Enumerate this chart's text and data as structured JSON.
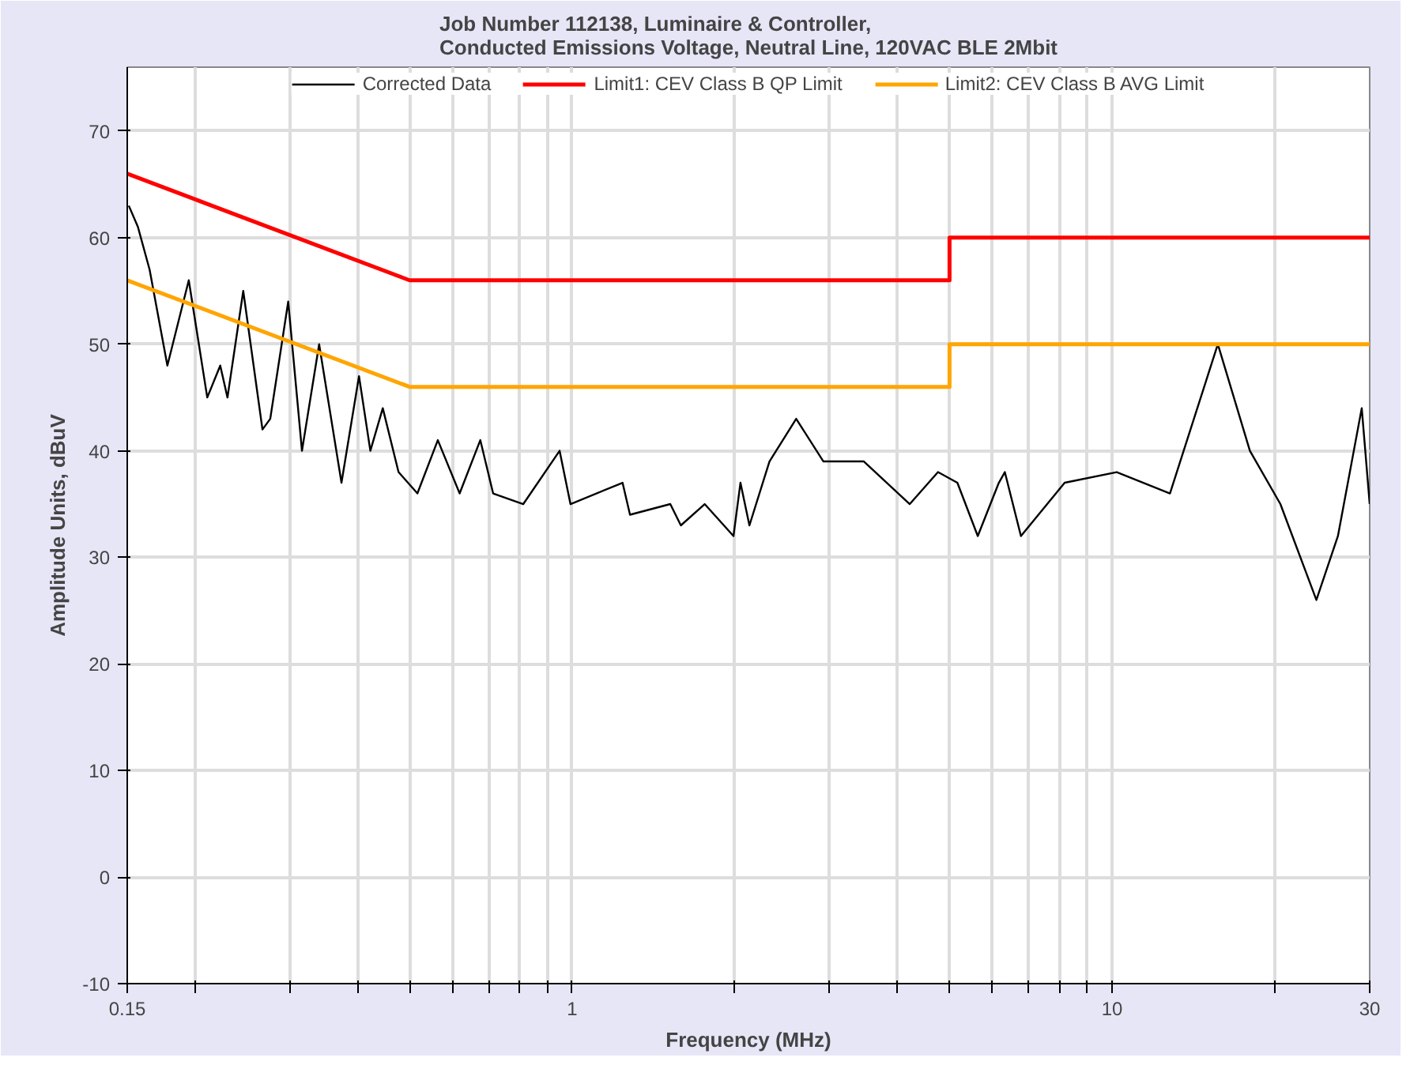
{
  "chart_data": {
    "type": "line",
    "title": "Job Number 112138, Luminaire & Controller,\nConducted Emissions Voltage, Neutral Line, 120VAC BLE 2Mbit",
    "xlabel": "Frequency (MHz)",
    "ylabel": "Amplitude Units, dBuV",
    "log": "x",
    "grid": true,
    "legend": "top",
    "xlim": [
      0.15,
      30
    ],
    "ylim": [
      -10,
      76
    ],
    "xticks": [
      0.15,
      {
        "value": 0.2,
        "label": null
      },
      {
        "value": 0.3,
        "label": null
      },
      {
        "value": 0.4,
        "label": null
      },
      {
        "value": 0.5,
        "label": null
      },
      {
        "value": 0.6,
        "label": null
      },
      {
        "value": 0.7,
        "label": null
      },
      {
        "value": 0.8,
        "label": null
      },
      {
        "value": 0.9,
        "label": null
      },
      1,
      {
        "value": 2,
        "label": null
      },
      {
        "value": 3,
        "label": null
      },
      {
        "value": 4,
        "label": null
      },
      {
        "value": 5,
        "label": null
      },
      {
        "value": 6,
        "label": null
      },
      {
        "value": 7,
        "label": null
      },
      {
        "value": 8,
        "label": null
      },
      {
        "value": 9,
        "label": null
      },
      10,
      {
        "value": 20,
        "label": null
      },
      30
    ],
    "yticks": [
      -10,
      0,
      10,
      20,
      30,
      40,
      50,
      60,
      70
    ],
    "series": [
      {
        "name": "Corrected Data",
        "color": "#000000",
        "x": [
          0.151,
          0.157,
          0.165,
          0.178,
          0.195,
          0.211,
          0.223,
          0.23,
          0.246,
          0.267,
          0.276,
          0.298,
          0.316,
          0.34,
          0.374,
          0.403,
          0.423,
          0.446,
          0.477,
          0.517,
          0.564,
          0.619,
          0.676,
          0.714,
          0.812,
          0.948,
          0.993,
          1.24,
          1.28,
          1.52,
          1.59,
          1.76,
          1.99,
          2.05,
          2.13,
          2.32,
          2.6,
          2.92,
          3.47,
          4.22,
          4.76,
          5.17,
          5.64,
          6.17,
          6.33,
          6.78,
          8.17,
          10.2,
          12.8,
          15.7,
          18.0,
          20.5,
          23.9,
          26.2,
          29.0,
          30
        ],
        "values": [
          63,
          61,
          57,
          48,
          56,
          45,
          48,
          45,
          55,
          42,
          43,
          54,
          40,
          50,
          37,
          47,
          40,
          44,
          38,
          36,
          41,
          36,
          41,
          36,
          35,
          40,
          35,
          37,
          34,
          35,
          33,
          35,
          32,
          37,
          33,
          39,
          43,
          39,
          39,
          35,
          38,
          37,
          32,
          37,
          38,
          32,
          37,
          38,
          36,
          50,
          40,
          35,
          26,
          32,
          44,
          35
        ]
      },
      {
        "name": "Limit1: CEV Class B QP Limit",
        "color": "#ff0000",
        "x": [
          0.15,
          0.5,
          5,
          5,
          30
        ],
        "values": [
          66,
          56,
          56,
          60,
          60
        ]
      },
      {
        "name": "Limit2: CEV Class B AVG Limit",
        "color": "#ffa500",
        "x": [
          0.15,
          0.5,
          5,
          5,
          30
        ],
        "values": [
          56,
          46,
          46,
          50,
          50
        ]
      }
    ]
  }
}
